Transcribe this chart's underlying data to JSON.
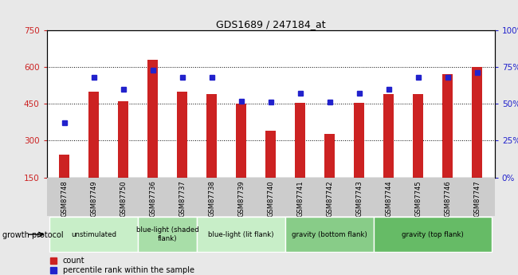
{
  "title": "GDS1689 / 247184_at",
  "samples": [
    "GSM87748",
    "GSM87749",
    "GSM87750",
    "GSM87736",
    "GSM87737",
    "GSM87738",
    "GSM87739",
    "GSM87740",
    "GSM87741",
    "GSM87742",
    "GSM87743",
    "GSM87744",
    "GSM87745",
    "GSM87746",
    "GSM87747"
  ],
  "counts": [
    242,
    500,
    460,
    630,
    500,
    490,
    450,
    340,
    455,
    328,
    455,
    490,
    490,
    570,
    600
  ],
  "percentiles": [
    37,
    68,
    60,
    73,
    68,
    68,
    52,
    51,
    57,
    51,
    57,
    60,
    68,
    68,
    71
  ],
  "ylim_left": [
    150,
    750
  ],
  "ylim_right": [
    0,
    100
  ],
  "yticks_left": [
    150,
    300,
    450,
    600,
    750
  ],
  "yticks_right": [
    0,
    25,
    50,
    75,
    100
  ],
  "bar_color": "#cc2222",
  "dot_color": "#2222cc",
  "background_color": "#e8e8e8",
  "plot_bg_color": "#ffffff",
  "groups": [
    {
      "label": "unstimulated",
      "start": 0,
      "end": 3,
      "color": "#c8eec8"
    },
    {
      "label": "blue-light (shaded\nflank)",
      "start": 3,
      "end": 5,
      "color": "#a8dea8"
    },
    {
      "label": "blue-light (lit flank)",
      "start": 5,
      "end": 8,
      "color": "#c8eec8"
    },
    {
      "label": "gravity (bottom flank)",
      "start": 8,
      "end": 11,
      "color": "#88cc88"
    },
    {
      "label": "gravity (top flank)",
      "start": 11,
      "end": 15,
      "color": "#66bb66"
    }
  ],
  "growth_protocol_label": "growth protocol",
  "legend_items": [
    {
      "label": "count",
      "color": "#cc2222"
    },
    {
      "label": "percentile rank within the sample",
      "color": "#2222cc"
    }
  ]
}
